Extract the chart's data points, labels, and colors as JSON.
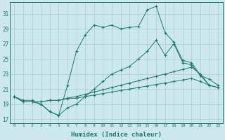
{
  "xlabel": "Humidex (Indice chaleur)",
  "bg_color": "#cce8ec",
  "grid_color": "#aaccd4",
  "line_color": "#1a7a6e",
  "xlim": [
    -0.5,
    23.5
  ],
  "ylim": [
    16.5,
    32.5
  ],
  "xticks": [
    0,
    1,
    2,
    3,
    4,
    5,
    6,
    7,
    8,
    9,
    10,
    11,
    12,
    13,
    14,
    15,
    16,
    17,
    18,
    19,
    20,
    21,
    22,
    23
  ],
  "yticks": [
    17,
    19,
    21,
    23,
    25,
    27,
    29,
    31
  ],
  "line1_x": [
    0,
    1,
    2,
    3,
    4,
    5,
    6,
    7,
    8,
    9,
    10,
    11,
    12,
    13,
    14,
    15,
    16,
    17,
    18,
    19,
    20,
    21,
    22
  ],
  "line1_y": [
    20.0,
    19.5,
    19.5,
    19.0,
    18.0,
    17.5,
    21.5,
    26.0,
    28.2,
    29.5,
    29.2,
    29.5,
    29.0,
    29.2,
    29.3,
    31.5,
    32.0,
    28.5,
    27.2,
    24.8,
    24.5,
    22.8,
    21.5
  ],
  "line2_x": [
    0,
    1,
    2,
    3,
    4,
    5,
    6,
    7,
    8,
    9,
    10,
    11,
    12,
    13,
    14,
    15,
    16,
    17,
    18,
    19,
    20,
    21,
    22,
    23
  ],
  "line2_y": [
    20.0,
    19.3,
    19.3,
    19.0,
    18.0,
    17.5,
    18.5,
    19.0,
    20.0,
    21.0,
    22.0,
    23.0,
    23.5,
    24.0,
    25.0,
    26.0,
    27.5,
    25.5,
    27.0,
    24.5,
    24.2,
    22.8,
    22.3,
    21.5
  ],
  "line3_x": [
    0,
    1,
    2,
    3,
    4,
    5,
    6,
    7,
    8,
    9,
    10,
    11,
    12,
    13,
    14,
    15,
    16,
    17,
    18,
    19,
    20,
    21,
    22,
    23
  ],
  "line3_y": [
    20.0,
    19.3,
    19.3,
    19.3,
    19.5,
    19.5,
    19.8,
    20.0,
    20.3,
    20.6,
    20.9,
    21.2,
    21.5,
    21.8,
    22.1,
    22.4,
    22.7,
    23.0,
    23.3,
    23.6,
    23.9,
    23.0,
    21.5,
    21.2
  ],
  "line4_x": [
    0,
    1,
    2,
    3,
    4,
    5,
    6,
    7,
    8,
    9,
    10,
    11,
    12,
    13,
    14,
    15,
    16,
    17,
    18,
    19,
    20,
    21,
    22,
    23
  ],
  "line4_y": [
    20.0,
    19.3,
    19.3,
    19.3,
    19.5,
    19.5,
    19.7,
    19.8,
    20.0,
    20.2,
    20.4,
    20.6,
    20.8,
    21.0,
    21.2,
    21.4,
    21.6,
    21.8,
    22.0,
    22.2,
    22.4,
    22.0,
    21.5,
    21.2
  ]
}
